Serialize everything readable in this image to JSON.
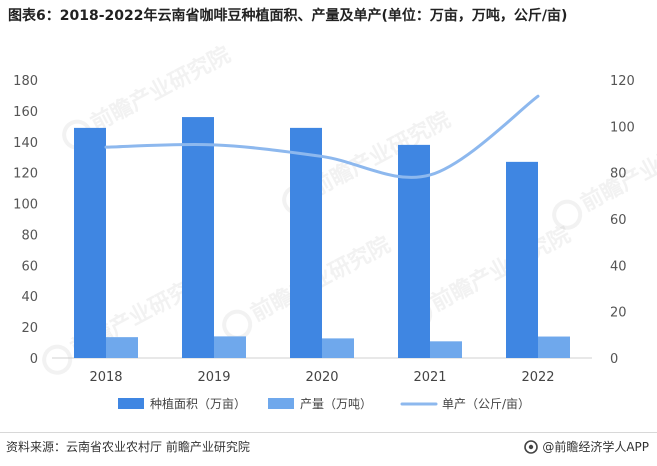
{
  "title": "图表6：2018-2022年云南省咖啡豆种植面积、产量及单产(单位：万亩，万吨，公斤/亩)",
  "source": "资料来源：云南省农业农村厅 前瞻产业研究院",
  "brand": "@前瞻经济学人APP",
  "watermark": "前瞻产业研究院",
  "colors": {
    "area": "#3f86e2",
    "output": "#6fa8ec",
    "yield": "#8db8ee"
  },
  "chart_data": {
    "type": "bar",
    "categories": [
      "2018",
      "2019",
      "2020",
      "2021",
      "2022"
    ],
    "series": [
      {
        "name": "种植面积（万亩）",
        "type": "bar",
        "axis": "left",
        "values": [
          149,
          156,
          149,
          138,
          127
        ]
      },
      {
        "name": "产量（万吨）",
        "type": "bar",
        "axis": "left",
        "values": [
          13.5,
          14,
          12.7,
          10.8,
          13.9
        ]
      },
      {
        "name": "单产（公斤/亩）",
        "type": "line",
        "axis": "right",
        "values": [
          91,
          92,
          87,
          79,
          113
        ]
      }
    ],
    "ylim_left": [
      0,
      180
    ],
    "yticks_left": [
      "0",
      "20",
      "40",
      "60",
      "80",
      "100",
      "120",
      "140",
      "160",
      "180"
    ],
    "ylim_right": [
      0,
      120
    ],
    "yticks_right": [
      "0",
      "20",
      "40",
      "60",
      "80",
      "100",
      "120"
    ],
    "legend_position": "bottom",
    "grid": false
  }
}
